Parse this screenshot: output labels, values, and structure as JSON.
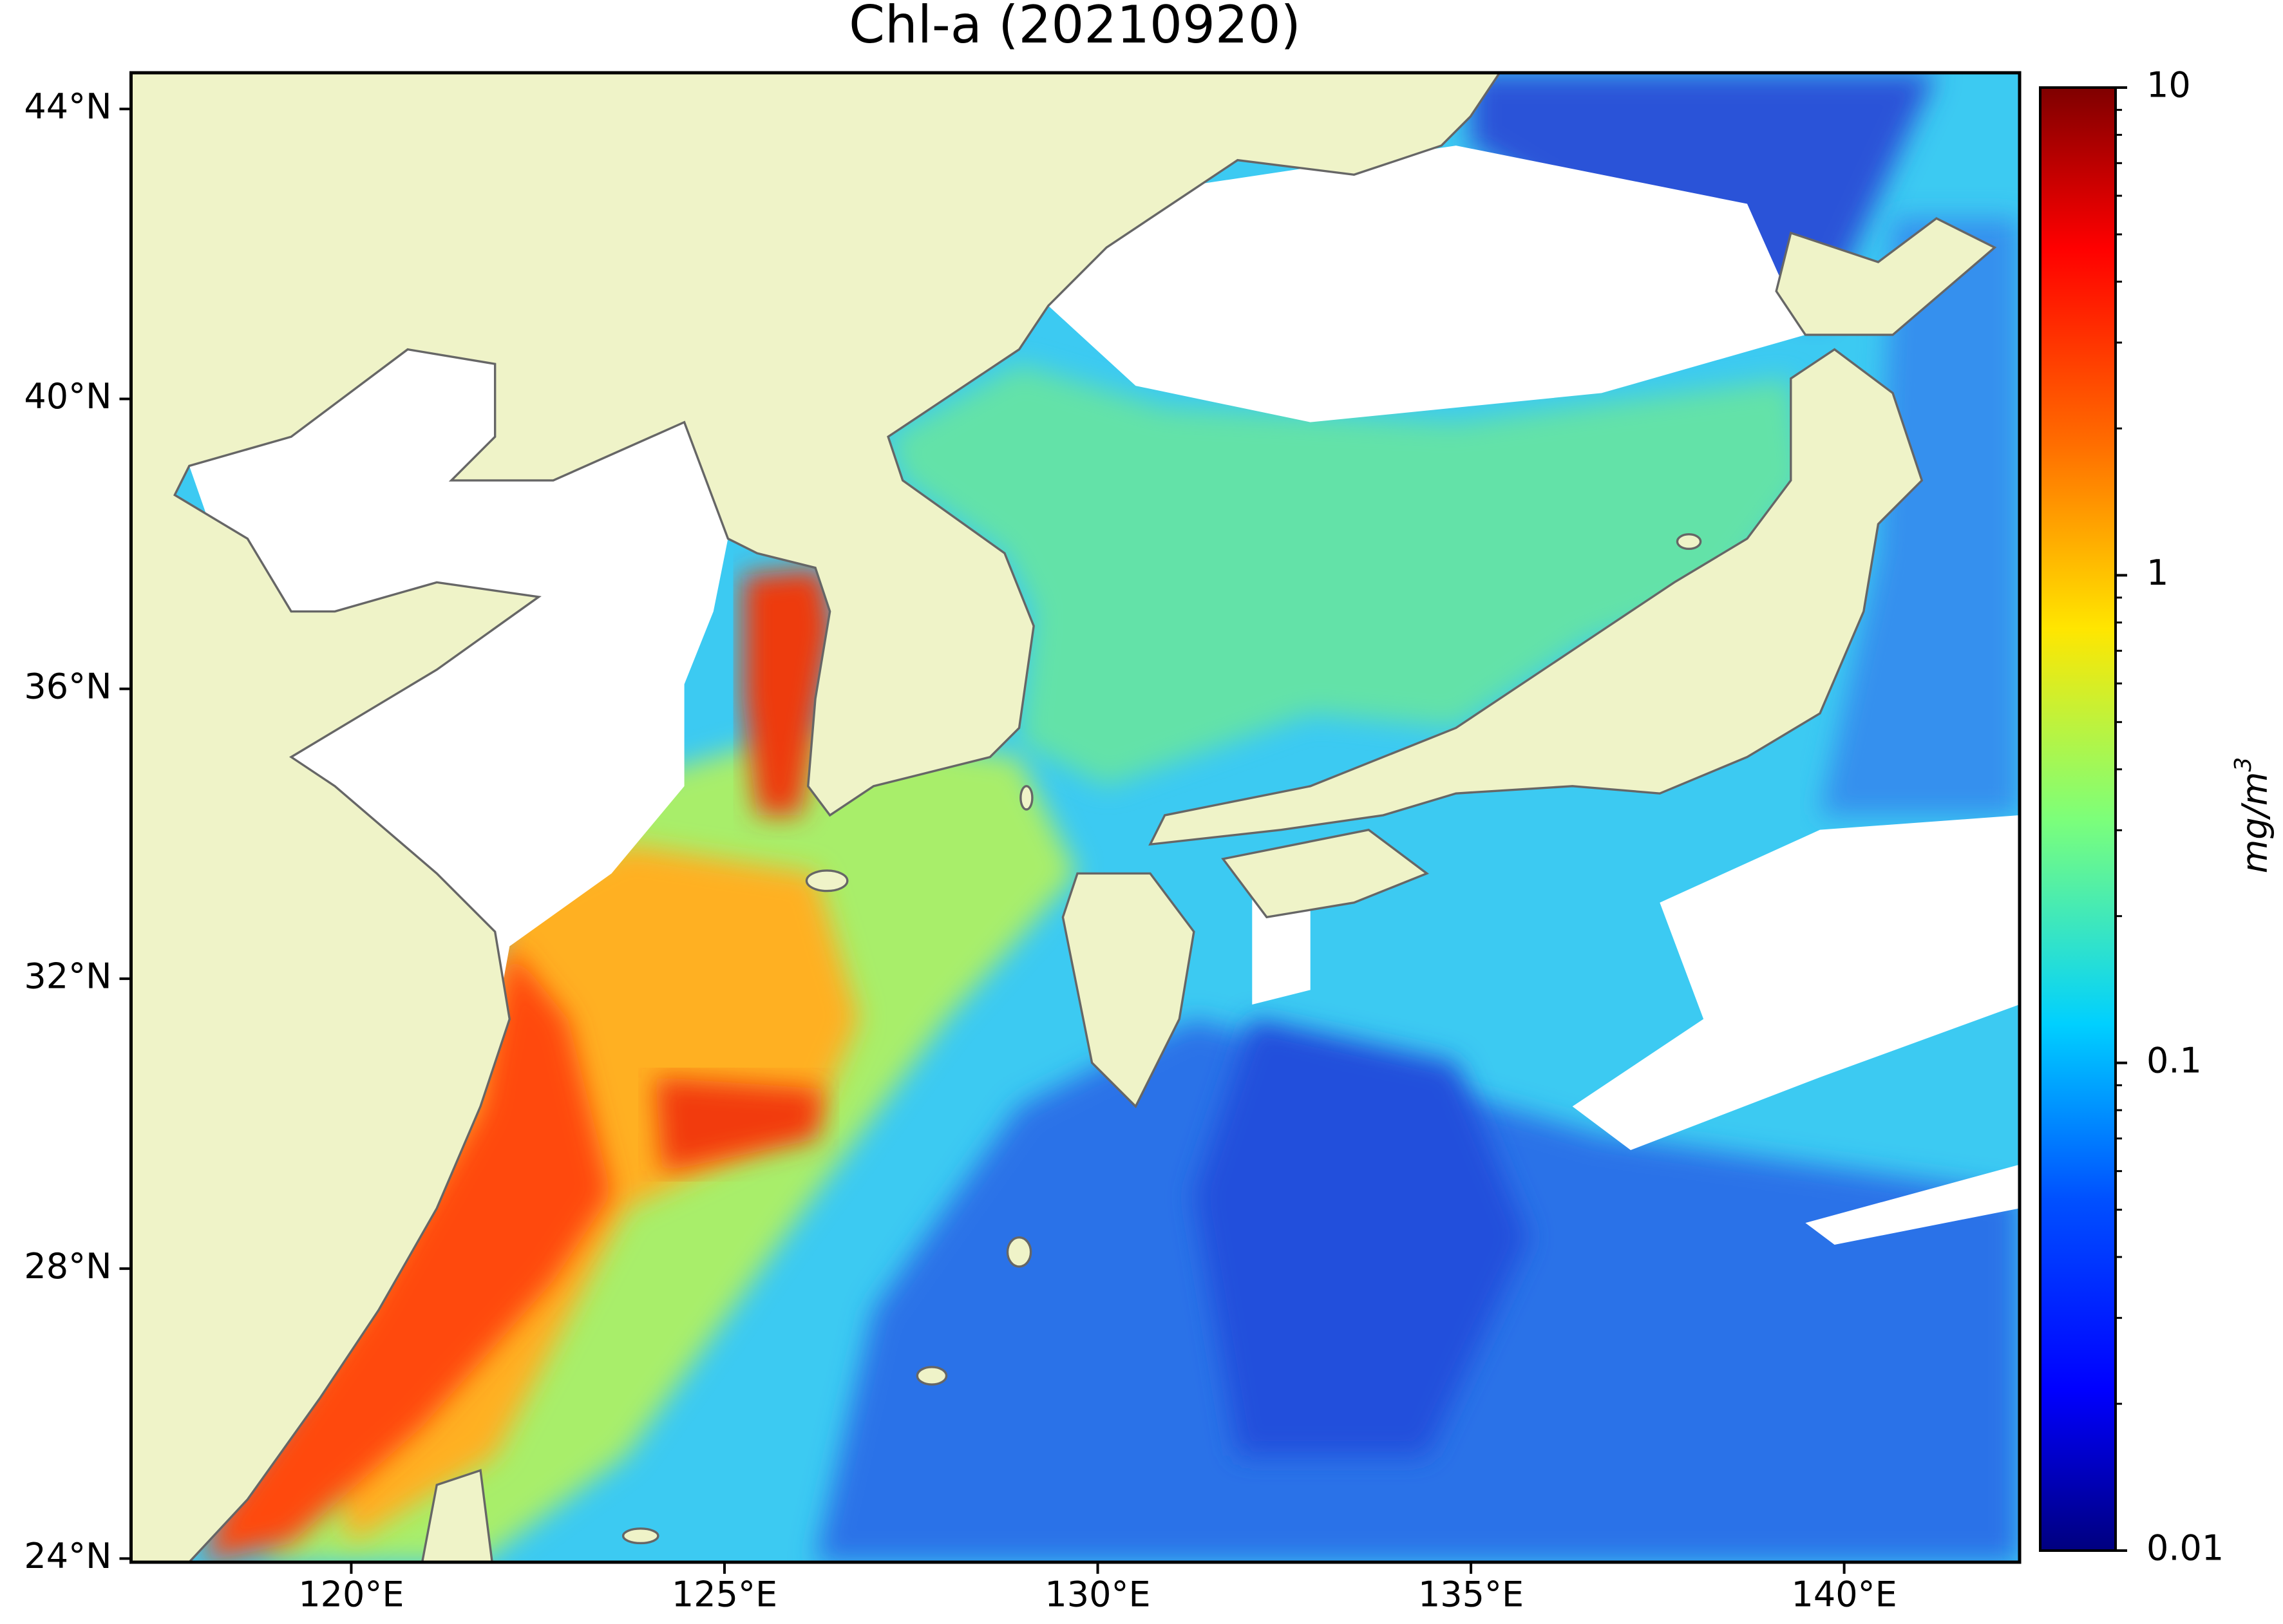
{
  "map": {
    "title": "Chl-a (20210920)",
    "xlim": [
      117.05,
      142.35
    ],
    "ylim": [
      23.95,
      44.5
    ],
    "xticks": [
      {
        "value": 120,
        "label": "120°E"
      },
      {
        "value": 125,
        "label": "125°E"
      },
      {
        "value": 130,
        "label": "130°E"
      },
      {
        "value": 135,
        "label": "135°E"
      },
      {
        "value": 140,
        "label": "140°E"
      }
    ],
    "yticks": [
      {
        "value": 24,
        "label": "24°N"
      },
      {
        "value": 28,
        "label": "28°N"
      },
      {
        "value": 32,
        "label": "32°N"
      },
      {
        "value": 36,
        "label": "36°N"
      },
      {
        "value": 40,
        "label": "40°N"
      },
      {
        "value": 44,
        "label": "44°N"
      }
    ],
    "colorbar": {
      "colormap": "jet",
      "scale": "log",
      "range": [
        0.01,
        10
      ],
      "ticks": [
        10,
        1,
        0.1,
        0.01
      ],
      "minor_ticks": [
        0.02,
        0.03,
        0.04,
        0.05,
        0.06,
        0.07,
        0.08,
        0.09,
        0.2,
        0.3,
        0.4,
        0.5,
        0.6,
        0.7,
        0.8,
        0.9,
        2,
        3,
        4,
        5,
        6,
        7,
        8,
        9
      ],
      "label": {
        "base": "mg/m",
        "superscript": "3"
      }
    }
  }
}
